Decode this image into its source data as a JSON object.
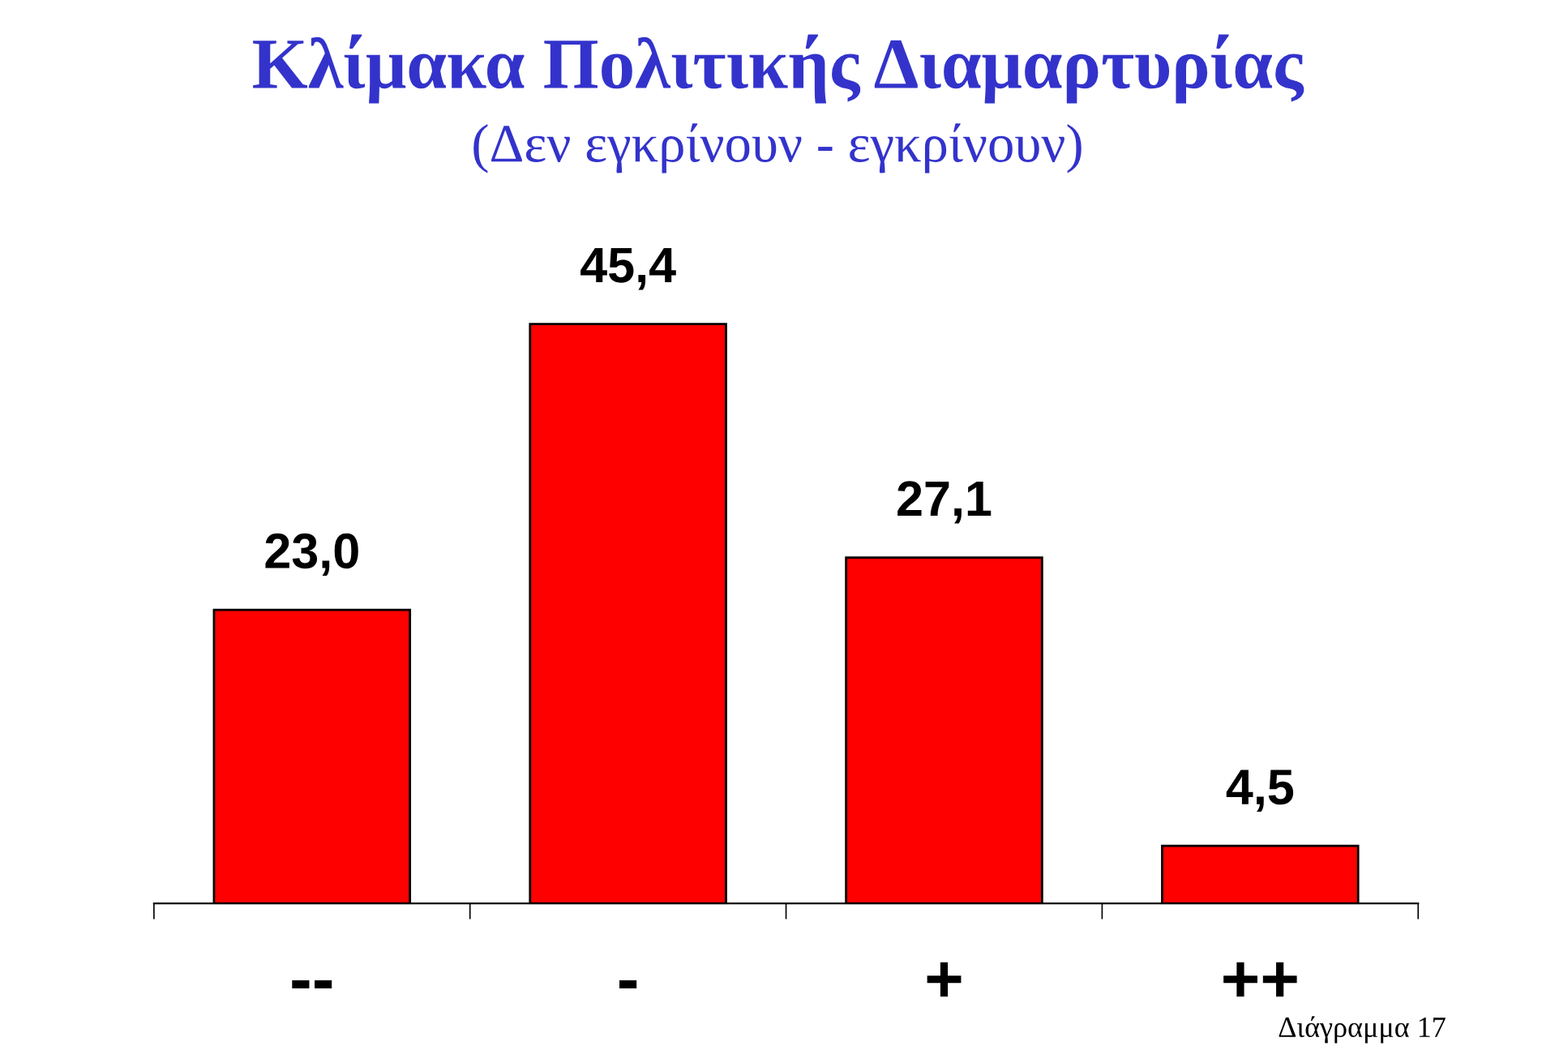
{
  "chart_data": {
    "type": "bar",
    "title": "Κλίμακα Πολιτικής Διαμαρτυρίας",
    "subtitle": "(Δεν εγκρίνουν - εγκρίνουν)",
    "categories": [
      "--",
      "-",
      "+",
      "++"
    ],
    "values": [
      23.0,
      45.4,
      27.1,
      4.5
    ],
    "value_labels": [
      "23,0",
      "45,4",
      "27,1",
      "4,5"
    ],
    "color": "#ff0000",
    "annotations": [
      "Διάγραμμα 17"
    ],
    "grid": false,
    "legend": false,
    "tick_labels": "x"
  }
}
